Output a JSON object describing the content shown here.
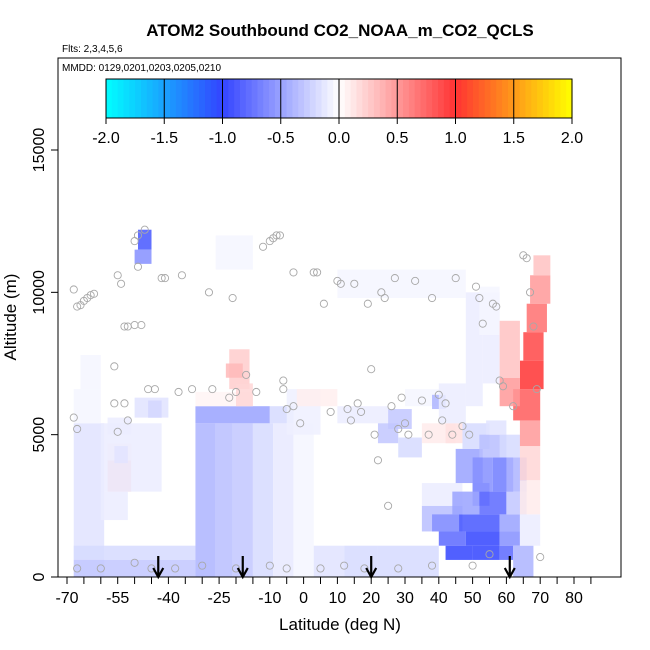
{
  "chart_data": {
    "type": "heatmap",
    "title": "ATOM2 Southbound CO2_NOAA_m_CO2_QCLS",
    "flights_label": "Flts: 2,3,4,5,6",
    "dates_label": "MMDD: 0129,0201,0203,0205,0210",
    "xlabel": "Latitude (deg N)",
    "ylabel": "Altitude (m)",
    "xlim": [
      -70,
      85
    ],
    "ylim": [
      0,
      17500
    ],
    "x_ticks": [
      -70,
      -55,
      -40,
      -25,
      -10,
      0,
      10,
      20,
      30,
      40,
      50,
      60,
      70,
      80
    ],
    "x_tick_labels": [
      "-70",
      "-55",
      "-40",
      "-25",
      "-10",
      "0",
      "10",
      "20",
      "30",
      "40",
      "50",
      "60",
      "70",
      "80"
    ],
    "x_minor_ticks": [
      -65,
      -60,
      -50,
      -45,
      -35,
      -30,
      -20,
      -15,
      -5,
      5,
      15,
      25,
      35,
      45,
      55,
      65,
      75,
      85
    ],
    "y_ticks": [
      0,
      5000,
      10000,
      15000
    ],
    "y_tick_labels": [
      "0",
      "5000",
      "10000",
      "15000"
    ],
    "colorbar": {
      "min": -2.0,
      "max": 2.0,
      "ticks": [
        -2.0,
        -1.5,
        -1.0,
        -0.5,
        0.0,
        0.5,
        1.0,
        1.5,
        2.0
      ],
      "tick_labels": [
        "-2.0",
        "-1.5",
        "-1.0",
        "-0.5",
        "0.0",
        "0.5",
        "1.0",
        "1.5",
        "2.0"
      ],
      "colors": [
        "#00ffff",
        "#3344ff",
        "#ffffff",
        "#ff3333",
        "#ffff00"
      ]
    },
    "cells": [
      [
        -68,
        -59,
        0,
        5400,
        -0.15
      ],
      [
        -68,
        -60,
        5400,
        6600,
        -0.05
      ],
      [
        -66,
        -60,
        6600,
        7800,
        -0.05
      ],
      [
        -58,
        -51,
        3000,
        4100,
        0.3
      ],
      [
        -58,
        -51,
        4100,
        4700,
        0.1
      ],
      [
        -58,
        -51,
        5000,
        5600,
        -0.1
      ],
      [
        -56,
        -52,
        4000,
        4600,
        -0.4
      ],
      [
        -46,
        -42,
        5600,
        6200,
        -0.6
      ],
      [
        -49,
        -45,
        11500,
        12200,
        -0.9
      ],
      [
        -50,
        -45,
        11000,
        11500,
        -0.6
      ],
      [
        -50,
        -40,
        5600,
        6300,
        -0.15
      ],
      [
        -60,
        -42,
        3000,
        5400,
        -0.1
      ],
      [
        -60,
        -52,
        2000,
        3000,
        -0.1
      ],
      [
        -68,
        -32,
        600,
        1100,
        -0.2
      ],
      [
        -68,
        -32,
        0,
        600,
        -0.3
      ],
      [
        -32,
        -26,
        0,
        5400,
        -0.4
      ],
      [
        -26,
        -21,
        0,
        5400,
        -0.35
      ],
      [
        -21,
        -15,
        0,
        5400,
        -0.3
      ],
      [
        -15,
        -9,
        0,
        5400,
        -0.2
      ],
      [
        -9,
        -3,
        0,
        5400,
        -0.12
      ],
      [
        -3,
        3,
        0,
        5400,
        -0.05
      ],
      [
        -32,
        -10,
        5400,
        6000,
        -0.5
      ],
      [
        -10,
        -3,
        5400,
        6000,
        -0.2
      ],
      [
        -32,
        -15,
        6000,
        6500,
        0.05
      ],
      [
        -22,
        -16,
        6600,
        8000,
        0.25
      ],
      [
        -23,
        -18,
        7000,
        7500,
        0.35
      ],
      [
        -20,
        -15,
        6000,
        6800,
        0.2
      ],
      [
        -26,
        -15,
        10800,
        12000,
        -0.05
      ],
      [
        -5,
        5,
        5000,
        6600,
        -0.08
      ],
      [
        -2,
        10,
        6000,
        6600,
        0.08
      ],
      [
        3,
        12,
        0,
        1100,
        -0.15
      ],
      [
        12,
        22,
        0,
        1100,
        -0.2
      ],
      [
        22,
        40,
        0,
        1100,
        -0.2
      ],
      [
        10,
        25,
        5400,
        6000,
        -0.1
      ],
      [
        22,
        28,
        4700,
        5400,
        -0.3
      ],
      [
        25,
        32,
        5200,
        5900,
        -0.3
      ],
      [
        28,
        35,
        4200,
        4900,
        -0.2
      ],
      [
        30,
        40,
        6000,
        6600,
        -0.05
      ],
      [
        35,
        45,
        4700,
        5400,
        0.1
      ],
      [
        38,
        42,
        5900,
        6400,
        -0.4
      ],
      [
        42,
        47,
        4700,
        5400,
        0.15
      ],
      [
        40,
        48,
        5400,
        6800,
        -0.1
      ],
      [
        10,
        30,
        9800,
        10800,
        -0.05
      ],
      [
        30,
        48,
        9800,
        10800,
        -0.05
      ],
      [
        48,
        53,
        6000,
        10000,
        -0.1
      ],
      [
        53,
        58,
        6800,
        10000,
        -0.1
      ],
      [
        52,
        58,
        8500,
        10200,
        -0.05
      ],
      [
        35,
        47,
        1600,
        2500,
        -0.35
      ],
      [
        35,
        47,
        2500,
        3300,
        -0.1
      ],
      [
        45,
        53,
        3300,
        4500,
        -0.5
      ],
      [
        47,
        55,
        4500,
        5400,
        -0.2
      ],
      [
        50,
        55,
        2500,
        3300,
        -0.6
      ],
      [
        42,
        50,
        600,
        1100,
        -1.0
      ],
      [
        50,
        58,
        600,
        1100,
        -1.0
      ],
      [
        58,
        62,
        600,
        1100,
        -0.8
      ],
      [
        40,
        48,
        1100,
        1600,
        -0.8
      ],
      [
        48,
        58,
        1100,
        1600,
        -1.0
      ],
      [
        58,
        64,
        1100,
        1600,
        -0.6
      ],
      [
        38,
        46,
        1600,
        2200,
        -0.6
      ],
      [
        46,
        58,
        1600,
        2200,
        -0.9
      ],
      [
        58,
        64,
        1600,
        2200,
        -0.5
      ],
      [
        44,
        52,
        2200,
        3000,
        -0.5
      ],
      [
        52,
        60,
        2200,
        3000,
        -0.8
      ],
      [
        60,
        66,
        2200,
        3000,
        -0.3
      ],
      [
        50,
        56,
        3000,
        4200,
        -0.6
      ],
      [
        56,
        62,
        3000,
        4200,
        -0.7
      ],
      [
        60,
        66,
        3000,
        4200,
        -0.4
      ],
      [
        52,
        60,
        4200,
        5000,
        -0.35
      ],
      [
        58,
        64,
        4200,
        5000,
        -0.2
      ],
      [
        54,
        60,
        5000,
        5500,
        -0.15
      ],
      [
        62,
        68,
        0,
        1100,
        -0.4
      ],
      [
        64,
        70,
        1100,
        2200,
        -0.1
      ],
      [
        64,
        70,
        2200,
        3400,
        0.1
      ],
      [
        64,
        70,
        3400,
        4600,
        0.2
      ],
      [
        64,
        70,
        4600,
        5500,
        0.5
      ],
      [
        62,
        70,
        5500,
        6600,
        0.8
      ],
      [
        64,
        71,
        6600,
        7600,
        1.0
      ],
      [
        65,
        71,
        7600,
        8600,
        0.9
      ],
      [
        66,
        72,
        8600,
        9600,
        0.7
      ],
      [
        67,
        73,
        9600,
        10600,
        0.5
      ],
      [
        68,
        73,
        10600,
        11300,
        0.3
      ],
      [
        58,
        64,
        6000,
        7000,
        0.5
      ],
      [
        58,
        64,
        7000,
        9000,
        0.3
      ]
    ],
    "points": [
      [
        -68,
        10100
      ],
      [
        -67,
        9500
      ],
      [
        -66,
        9550
      ],
      [
        -65,
        9700
      ],
      [
        -64,
        9800
      ],
      [
        -63,
        9900
      ],
      [
        -62,
        9950
      ],
      [
        -68,
        5600
      ],
      [
        -67,
        5200
      ],
      [
        -56,
        7400
      ],
      [
        -56,
        6100
      ],
      [
        -55,
        5100
      ],
      [
        -53,
        6100
      ],
      [
        -52,
        5500
      ],
      [
        -55,
        10600
      ],
      [
        -54,
        10300
      ],
      [
        -53,
        8800
      ],
      [
        -52,
        8800
      ],
      [
        -50,
        8850
      ],
      [
        -48,
        8850
      ],
      [
        -50,
        11800
      ],
      [
        -49,
        12000
      ],
      [
        -49,
        10900
      ],
      [
        -47,
        12200
      ],
      [
        -46,
        6600
      ],
      [
        -44,
        6600
      ],
      [
        -42,
        10500
      ],
      [
        -41,
        10500
      ],
      [
        -37,
        6500
      ],
      [
        -36,
        10600
      ],
      [
        -33,
        6600
      ],
      [
        -28,
        10000
      ],
      [
        -27,
        6600
      ],
      [
        -22,
        6300
      ],
      [
        -21,
        9800
      ],
      [
        -20,
        6500
      ],
      [
        -17,
        7100
      ],
      [
        -14,
        6500
      ],
      [
        -12,
        11600
      ],
      [
        -10,
        11800
      ],
      [
        -9,
        11900
      ],
      [
        -8,
        12000
      ],
      [
        -7,
        12000
      ],
      [
        -6,
        6900
      ],
      [
        -6,
        6600
      ],
      [
        -5,
        5900
      ],
      [
        -3,
        10700
      ],
      [
        -3,
        6000
      ],
      [
        -1,
        5400
      ],
      [
        3,
        10700
      ],
      [
        4,
        10700
      ],
      [
        6,
        9600
      ],
      [
        8,
        5800
      ],
      [
        10,
        10400
      ],
      [
        11,
        10300
      ],
      [
        13,
        5900
      ],
      [
        14,
        5500
      ],
      [
        15,
        10300
      ],
      [
        16,
        6100
      ],
      [
        17,
        5800
      ],
      [
        19,
        9600
      ],
      [
        20,
        7300
      ],
      [
        21,
        5000
      ],
      [
        22,
        4100
      ],
      [
        23,
        10000
      ],
      [
        24,
        9800
      ],
      [
        25,
        2500
      ],
      [
        26,
        6000
      ],
      [
        27,
        10500
      ],
      [
        28,
        5200
      ],
      [
        29,
        6300
      ],
      [
        30,
        5400
      ],
      [
        31,
        5000
      ],
      [
        33,
        10400
      ],
      [
        35,
        6200
      ],
      [
        37,
        5000
      ],
      [
        38,
        9800
      ],
      [
        40,
        6400
      ],
      [
        41,
        5500
      ],
      [
        42,
        6100
      ],
      [
        44,
        5000
      ],
      [
        45,
        10500
      ],
      [
        47,
        5300
      ],
      [
        49,
        5000
      ],
      [
        51,
        10200
      ],
      [
        52,
        9800
      ],
      [
        53,
        8900
      ],
      [
        55,
        800
      ],
      [
        56,
        9600
      ],
      [
        57,
        9500
      ],
      [
        58,
        6900
      ],
      [
        59,
        6700
      ],
      [
        62,
        6000
      ],
      [
        65,
        11300
      ],
      [
        66,
        11200
      ],
      [
        67,
        10000
      ],
      [
        68,
        8800
      ],
      [
        69,
        6600
      ],
      [
        70,
        700
      ],
      [
        -67,
        300
      ],
      [
        -60,
        300
      ],
      [
        -50,
        500
      ],
      [
        -45,
        300
      ],
      [
        -38,
        300
      ],
      [
        -30,
        400
      ],
      [
        -20,
        300
      ],
      [
        -10,
        400
      ],
      [
        -5,
        300
      ],
      [
        5,
        300
      ],
      [
        12,
        400
      ],
      [
        18,
        300
      ],
      [
        28,
        300
      ],
      [
        38,
        400
      ],
      [
        50,
        400
      ]
    ],
    "arrows_x": [
      -43,
      -18,
      20,
      61
    ]
  }
}
